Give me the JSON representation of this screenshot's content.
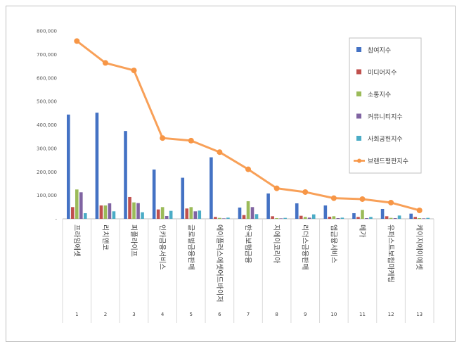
{
  "chart_data": {
    "type": "bar",
    "title": "",
    "xlabel": "",
    "ylabel": "",
    "ylim": [
      0,
      800000
    ],
    "yticks": [
      0,
      100000,
      200000,
      300000,
      400000,
      500000,
      600000,
      700000,
      800000
    ],
    "ytick_labels": [
      "-",
      "100,000",
      "200,000",
      "300,000",
      "400,000",
      "500,000",
      "600,000",
      "700,000",
      "800,000"
    ],
    "grid": false,
    "legend_position": "top-right",
    "categories": [
      "프라임에셋",
      "리치앤코",
      "피플라이프",
      "인카금융서비스",
      "글로벌금융판매",
      "에이플러스에셋어드바이저",
      "한국보험금융",
      "지에이코리아",
      "리더스금융판매",
      "엠금융서비스",
      "메가",
      "유퍼스트보험마케팅",
      "케이지에이에셋"
    ],
    "ranks": [
      "1",
      "2",
      "3",
      "4",
      "5",
      "6",
      "7",
      "8",
      "9",
      "10",
      "11",
      "12",
      "13"
    ],
    "series": [
      {
        "name": "참여지수",
        "kind": "bar",
        "color": "#4472c4",
        "values": [
          444000,
          452000,
          374000,
          210000,
          175000,
          262000,
          48000,
          108000,
          66000,
          57000,
          24000,
          42000,
          22000
        ]
      },
      {
        "name": "미디어지수",
        "kind": "bar",
        "color": "#c0504d",
        "values": [
          50000,
          57000,
          93000,
          40000,
          44000,
          8000,
          16000,
          11000,
          13000,
          9000,
          8000,
          11000,
          8000
        ]
      },
      {
        "name": "소통지수",
        "kind": "bar",
        "color": "#9bbb59",
        "values": [
          125000,
          57000,
          70000,
          50000,
          50000,
          4000,
          75000,
          3000,
          8000,
          11000,
          38000,
          4000,
          3000
        ]
      },
      {
        "name": "커뮤니티지수",
        "kind": "bar",
        "color": "#8064a2",
        "values": [
          113000,
          66000,
          67000,
          12000,
          32000,
          2000,
          50000,
          2000,
          5000,
          3000,
          3000,
          3000,
          2000
        ]
      },
      {
        "name": "사회공헌지수",
        "kind": "bar",
        "color": "#4bacc6",
        "values": [
          24000,
          32000,
          28000,
          34000,
          35000,
          5000,
          20000,
          4000,
          19000,
          5000,
          8000,
          14000,
          4000
        ]
      },
      {
        "name": "브랜드평판지수",
        "kind": "line",
        "color": "#f79646",
        "values": [
          757000,
          664000,
          632000,
          344000,
          333000,
          284000,
          211000,
          130000,
          114000,
          88000,
          84000,
          69000,
          36000
        ]
      }
    ]
  }
}
